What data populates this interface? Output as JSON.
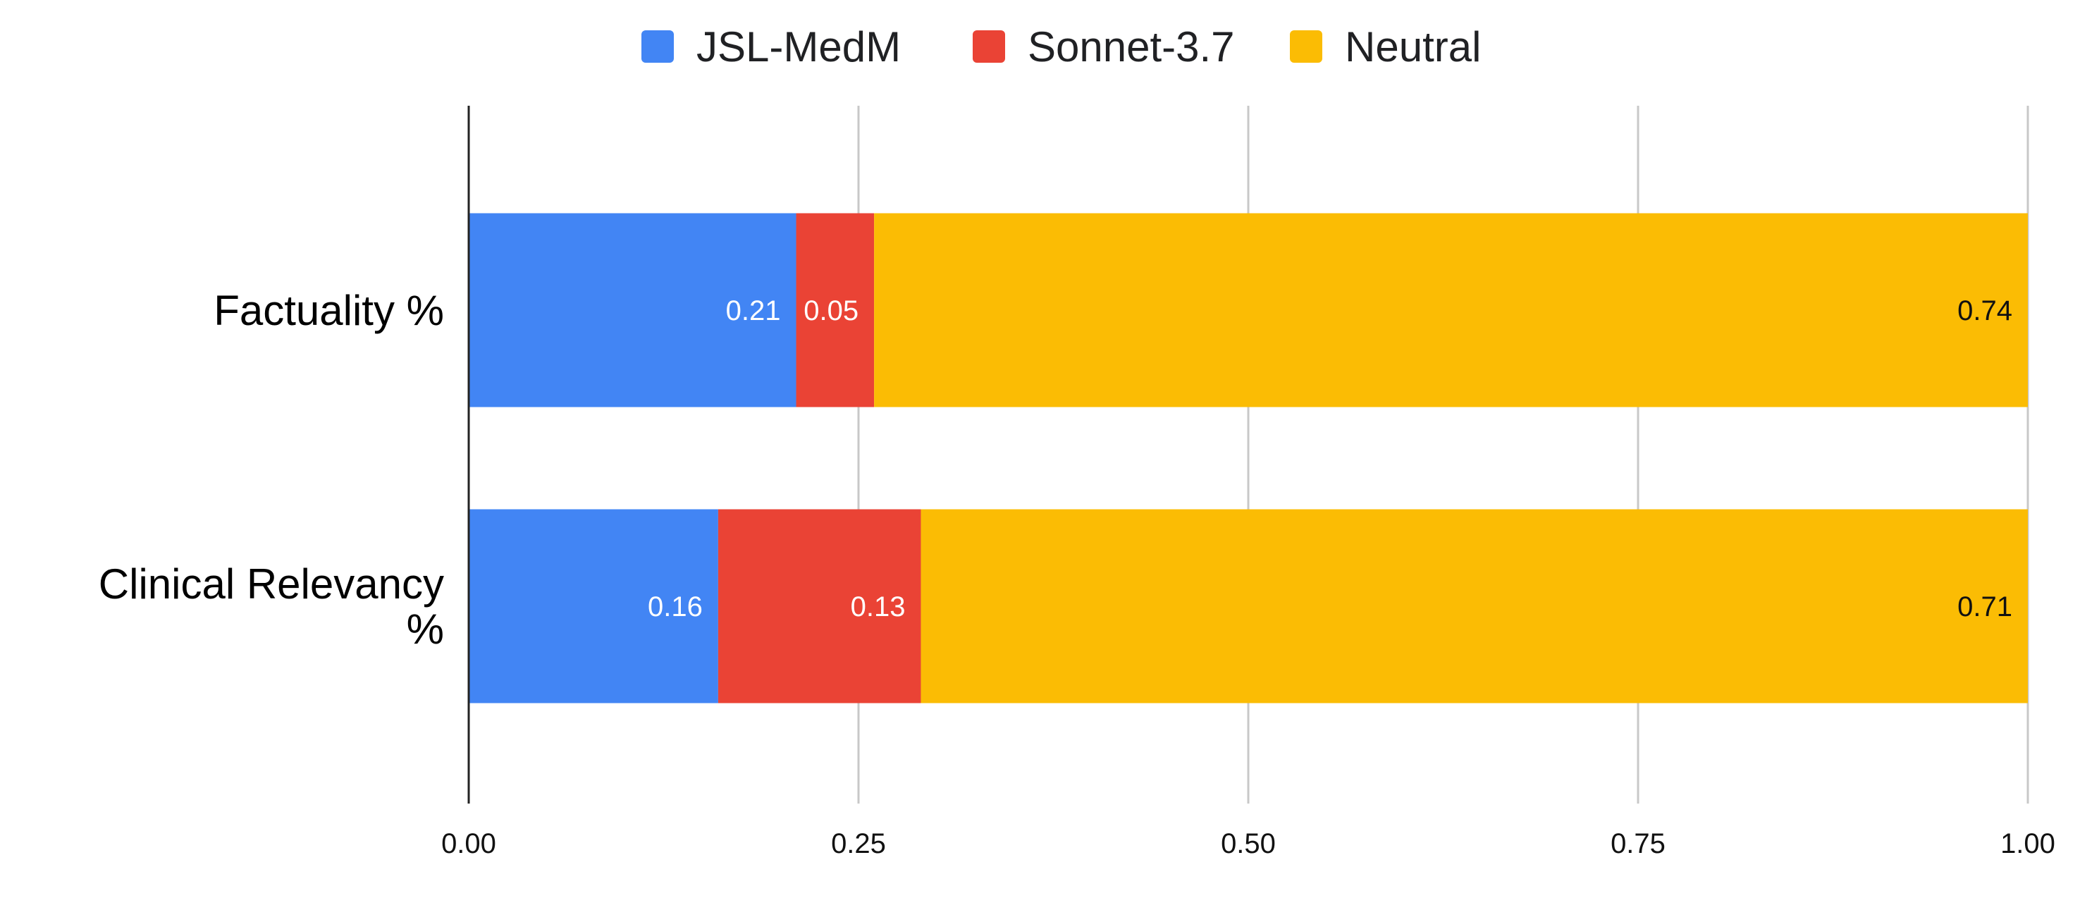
{
  "chart_data": {
    "type": "bar",
    "orientation": "horizontal",
    "stacked": true,
    "title": "",
    "xlabel": "",
    "ylabel": "",
    "categories": [
      "Factuality %",
      "Clinical Relevancy %"
    ],
    "category_lines": [
      [
        "Factuality %"
      ],
      [
        "Clinical Relevancy",
        "%"
      ]
    ],
    "series": [
      {
        "name": "JSL-MedM",
        "color": "#4285F4",
        "label_color": "#ffffff",
        "values": [
          0.21,
          0.16
        ],
        "labels": [
          "0.21",
          "0.16"
        ]
      },
      {
        "name": "Sonnet-3.7",
        "color": "#EA4335",
        "label_color": "#ffffff",
        "values": [
          0.05,
          0.13
        ],
        "labels": [
          "0.05",
          "0.13"
        ]
      },
      {
        "name": "Neutral",
        "color": "#FBBC04",
        "label_color": "#111111",
        "values": [
          0.74,
          0.71
        ],
        "labels": [
          "0.74",
          "0.71"
        ]
      }
    ],
    "xlim": [
      0,
      1
    ],
    "x_ticks": [
      0,
      0.25,
      0.5,
      0.75,
      1
    ],
    "x_tick_labels": [
      "0.00",
      "0.25",
      "0.50",
      "0.75",
      "1.00"
    ],
    "grid": true,
    "legend_position": "top-center"
  }
}
